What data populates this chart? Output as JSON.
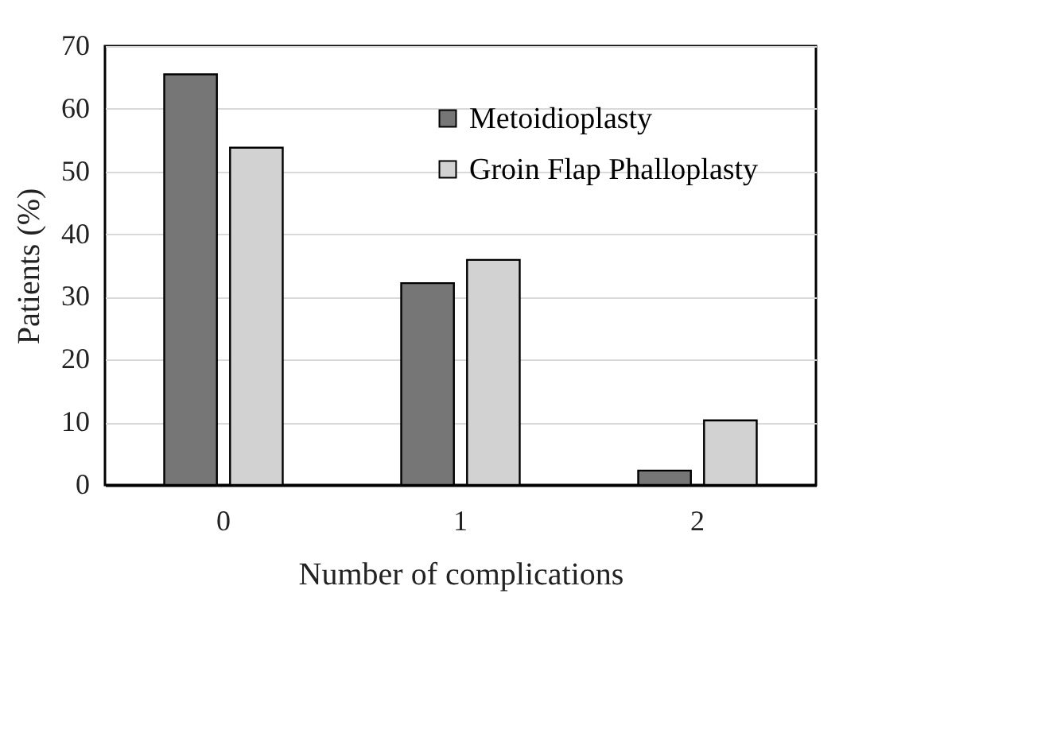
{
  "chart_data": {
    "type": "bar",
    "xlabel": "Number of complications",
    "ylabel": "Patients (%)",
    "categories": [
      "0",
      "1",
      "2"
    ],
    "series": [
      {
        "name": "Metoidioplasty",
        "color": "#767676",
        "values": [
          65.5,
          32.2,
          2.3
        ]
      },
      {
        "name": "Groin Flap Phalloplasty",
        "color": "#d2d2d2",
        "values": [
          53.8,
          35.9,
          10.3
        ]
      }
    ],
    "ylim": [
      0,
      70
    ],
    "yticks": [
      0,
      10,
      20,
      30,
      40,
      50,
      60,
      70
    ],
    "grid": "y",
    "legend": "top right"
  }
}
